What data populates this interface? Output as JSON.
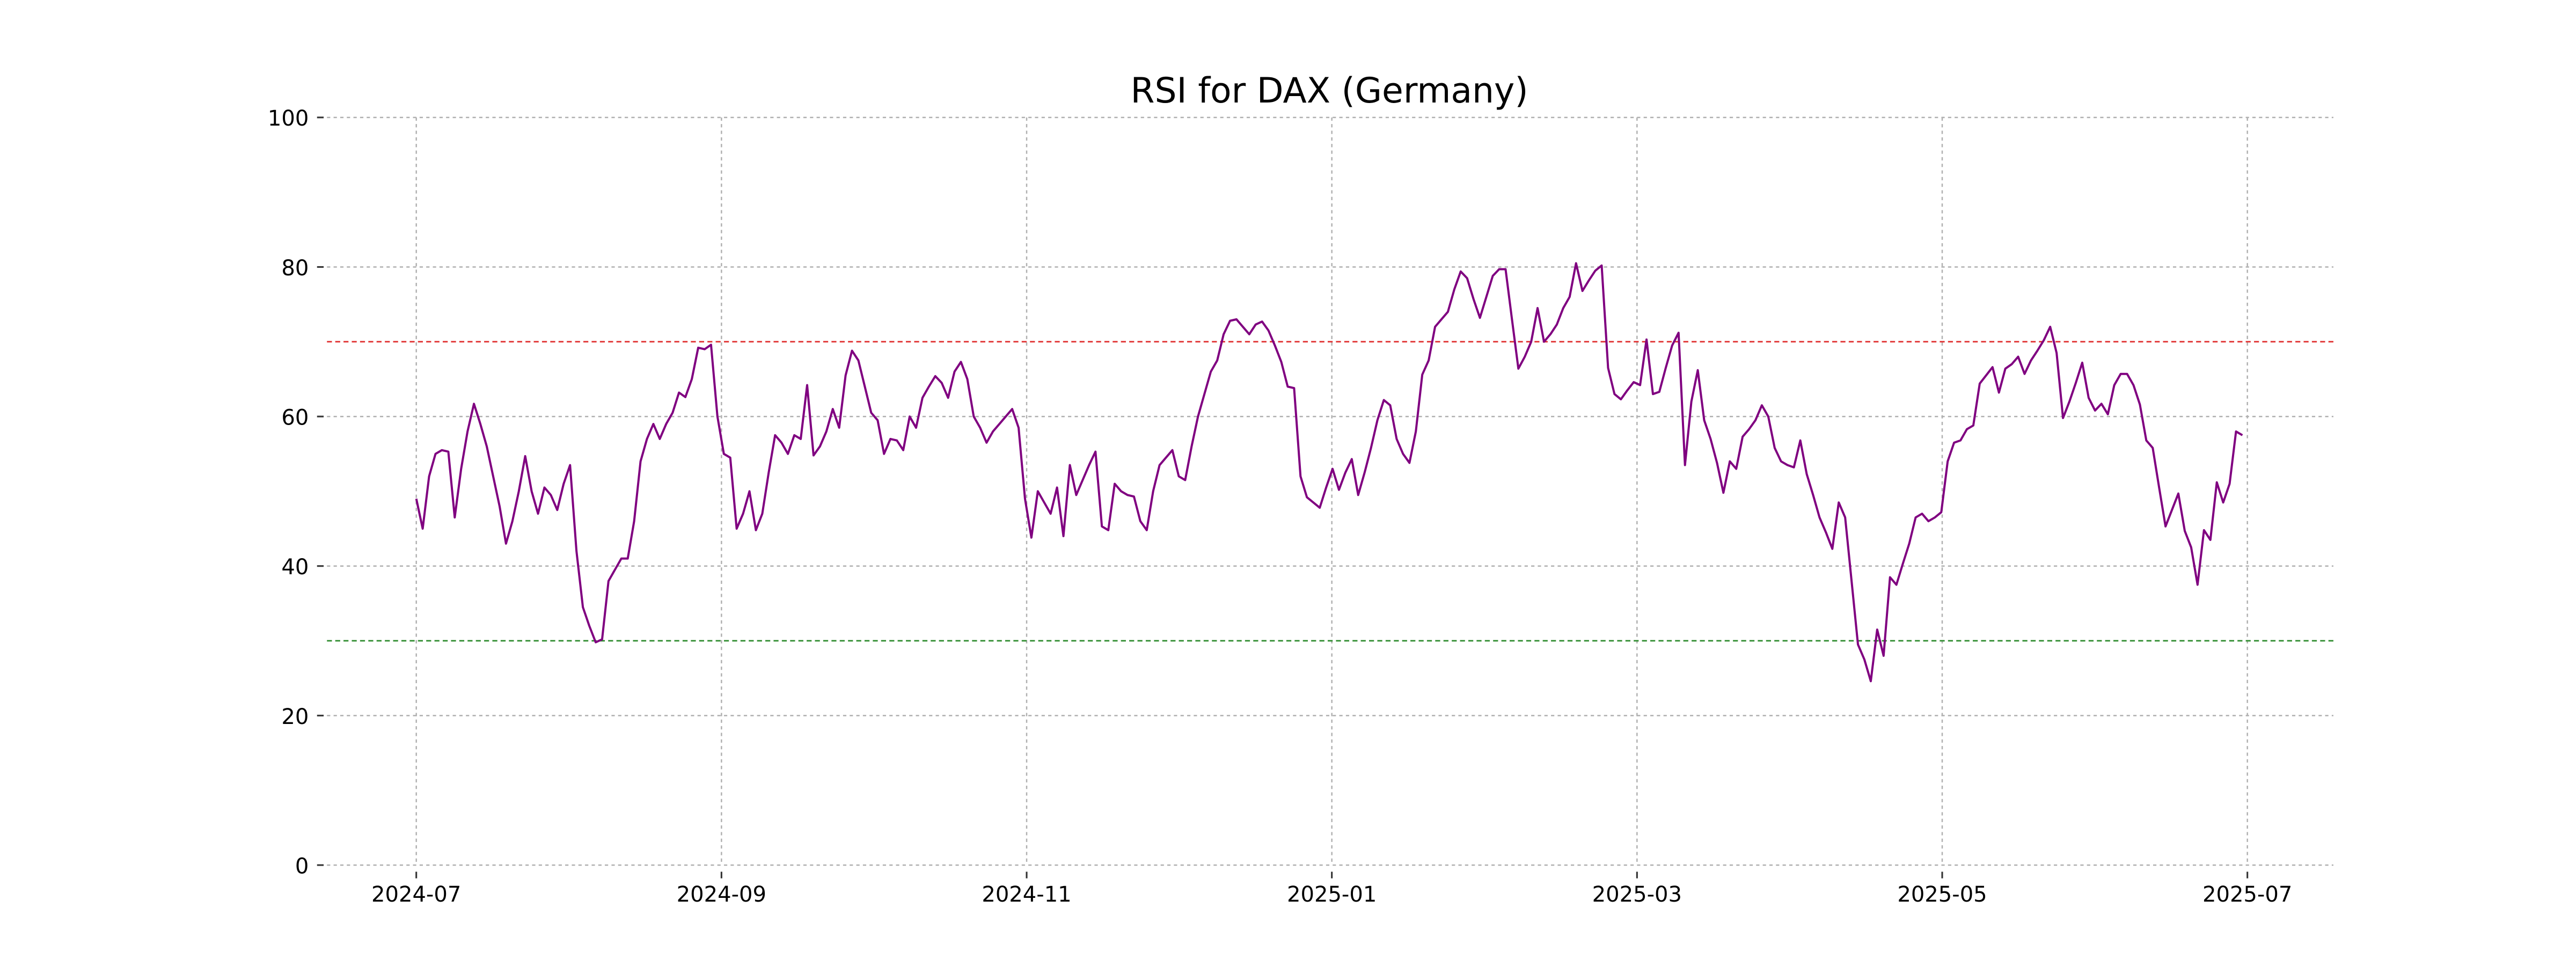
{
  "chart_data": {
    "type": "line",
    "title": "RSI for DAX (Germany)",
    "xticks": [
      "2024-07",
      "2024-09",
      "2024-11",
      "2025-01",
      "2025-03",
      "2025-05",
      "2025-07"
    ],
    "ylim": [
      0,
      100
    ],
    "yticks": [
      0,
      20,
      40,
      60,
      80,
      100
    ],
    "grid": true,
    "hlines": [
      {
        "value": 70,
        "color": "#e03030"
      },
      {
        "value": 30,
        "color": "#2e8b2e"
      }
    ],
    "series": [
      {
        "name": "RSI",
        "color": "#800080",
        "values": [
          49,
          45,
          52,
          55,
          55.5,
          55.3,
          46.5,
          53,
          58,
          61.7,
          59,
          56,
          52,
          48,
          43,
          46,
          50,
          54.7,
          50,
          47,
          50.5,
          49.5,
          47.5,
          51,
          53.5,
          42,
          34.5,
          32,
          29.8,
          30.2,
          38,
          39.5,
          41,
          41,
          46,
          54,
          57,
          59,
          57,
          59,
          60.5,
          63.2,
          62.6,
          65,
          69.2,
          69,
          69.6,
          60,
          55,
          54.5,
          45,
          47,
          50,
          44.8,
          47,
          52.5,
          57.5,
          56.5,
          55,
          57.5,
          57,
          64.2,
          54.8,
          56,
          58,
          61,
          58.5,
          65.5,
          68.8,
          67.5,
          64,
          60.5,
          59.5,
          55,
          57,
          56.8,
          55.5,
          60,
          58.5,
          62.5,
          64,
          65.4,
          64.5,
          62.5,
          66,
          67.3,
          65,
          60,
          58.5,
          56.5,
          58,
          59,
          60,
          61,
          58.5,
          49,
          43.8,
          50,
          48.5,
          47,
          50.5,
          44,
          53.5,
          49.5,
          51.5,
          53.5,
          55.3,
          45.3,
          44.8,
          51,
          50,
          49.5,
          49.3,
          46,
          44.8,
          50,
          53.5,
          54.5,
          55.5,
          52,
          51.5,
          56,
          60,
          63,
          66,
          67.5,
          71,
          72.8,
          73,
          72,
          71,
          72.3,
          72.7,
          71.5,
          69.5,
          67.3,
          64,
          63.8,
          52,
          49.2,
          48.5,
          47.8,
          50.5,
          53,
          50.2,
          52.5,
          54.3,
          49.5,
          52.5,
          55.8,
          59.5,
          62.2,
          61.5,
          57,
          55,
          53.8,
          58,
          65.6,
          67.5,
          72,
          73,
          74,
          77,
          79.4,
          78.5,
          75.7,
          73.2,
          76,
          78.8,
          79.7,
          79.7,
          73,
          66.4,
          68,
          70,
          74.5,
          70,
          71,
          72.3,
          74.5,
          76,
          80.5,
          76.8,
          78.2,
          79.5,
          80.2,
          66.5,
          63,
          62.3,
          63.5,
          64.6,
          64.2,
          70.3,
          63,
          63.3,
          66.5,
          69.5,
          71.2,
          53.5,
          62,
          66.2,
          59.5,
          57,
          53.8,
          49.8,
          54,
          53,
          57.3,
          58.3,
          59.5,
          61.5,
          60,
          55.8,
          54,
          53.5,
          53.2,
          56.8,
          52.3,
          49.5,
          46.5,
          44.5,
          42.3,
          48.5,
          46.5,
          38,
          29.5,
          27.5,
          24.6,
          31.5,
          28,
          38.5,
          37.5,
          40.3,
          43,
          46.5,
          47,
          46,
          46.5,
          47.2,
          54,
          56.5,
          56.8,
          58.3,
          58.8,
          64.4,
          65.5,
          66.6,
          63.2,
          66.4,
          67,
          68,
          65.7,
          67.5,
          68.8,
          70.2,
          72,
          68.5,
          59.8,
          62,
          64.5,
          67.2,
          62.5,
          60.8,
          61.7,
          60.3,
          64.2,
          65.7,
          65.7,
          64.2,
          61.6,
          56.8,
          55.8,
          50.5,
          45.3,
          47.5,
          49.7,
          44.7,
          42.5,
          37.5,
          44.8,
          43.5,
          51.2,
          48.5,
          51,
          58,
          57.5
        ]
      }
    ]
  }
}
